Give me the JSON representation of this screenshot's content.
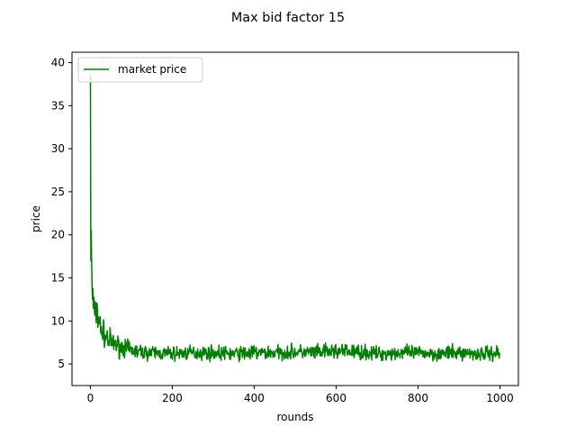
{
  "chart_data": {
    "type": "line",
    "title": "Max bid factor 15",
    "xlabel": "rounds",
    "ylabel": "price",
    "xlim": [
      -45,
      1045
    ],
    "ylim": [
      2.5,
      41.2
    ],
    "xticks": [
      0,
      200,
      400,
      600,
      800,
      1000
    ],
    "yticks": [
      5,
      10,
      15,
      20,
      25,
      30,
      35,
      40
    ],
    "grid": false,
    "legend": {
      "placement": "upper-left"
    },
    "series": [
      {
        "name": "market price",
        "color": "#008000",
        "x": [
          0,
          1,
          2,
          3,
          4,
          5,
          6,
          7,
          8,
          10,
          12,
          14,
          16,
          18,
          20,
          22,
          24,
          26,
          28,
          30,
          33,
          36,
          40,
          45,
          50,
          55,
          60,
          70,
          80,
          90,
          100,
          110,
          120,
          140,
          160,
          180,
          200,
          250,
          300,
          350,
          400,
          450,
          500,
          550,
          600,
          650,
          700,
          750,
          800,
          850,
          900,
          950,
          1000
        ],
        "y": [
          38.5,
          17.0,
          20.5,
          16.8,
          14.0,
          12.5,
          13.8,
          11.5,
          12.8,
          11.0,
          12.0,
          10.5,
          12.3,
          9.8,
          10.5,
          8.9,
          9.8,
          8.5,
          9.4,
          8.2,
          8.8,
          7.8,
          8.3,
          7.5,
          7.8,
          7.2,
          7.4,
          7.0,
          7.0,
          6.7,
          6.6,
          6.5,
          6.4,
          6.3,
          6.3,
          6.2,
          6.2,
          6.3,
          6.3,
          6.2,
          6.3,
          6.3,
          6.4,
          6.3,
          6.5,
          6.4,
          6.2,
          6.3,
          6.3,
          6.2,
          6.3,
          6.2,
          6.3
        ],
        "noise": [
          0,
          0,
          0,
          0,
          0,
          0,
          0,
          0,
          0,
          0.8,
          0.8,
          0.8,
          0.9,
          0.9,
          0.9,
          0.9,
          0.9,
          0.9,
          0.9,
          0.9,
          0.9,
          0.9,
          0.9,
          0.85,
          0.85,
          0.8,
          0.8,
          0.75,
          0.7,
          0.7,
          0.65,
          0.6,
          0.6,
          0.55,
          0.55,
          0.55,
          0.55,
          0.55,
          0.55,
          0.55,
          0.6,
          0.55,
          0.55,
          0.6,
          0.6,
          0.6,
          0.55,
          0.55,
          0.55,
          0.55,
          0.55,
          0.55,
          0.6
        ]
      }
    ]
  }
}
